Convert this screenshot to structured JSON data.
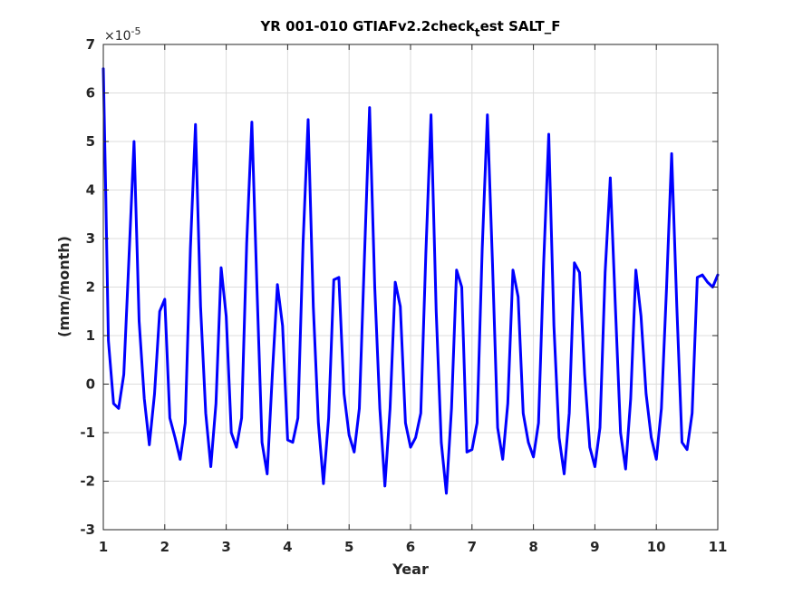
{
  "chart_data": {
    "type": "line",
    "title_main": "YR 001-010 GTIAFv2.2check",
    "title_sub": "t",
    "title_rest": "est SALT_F",
    "xlabel": "Year",
    "ylabel": "(mm/month)",
    "y_multiplier": "×10",
    "y_multiplier_exp": "-5",
    "xlim": [
      1,
      11
    ],
    "ylim": [
      -3,
      7
    ],
    "xticks": [
      "1",
      "2",
      "3",
      "4",
      "5",
      "6",
      "7",
      "8",
      "9",
      "10",
      "11"
    ],
    "yticks": [
      "-3",
      "-2",
      "-1",
      "0",
      "1",
      "2",
      "3",
      "4",
      "5",
      "6",
      "7"
    ],
    "grid": true,
    "line_color": "#0000ff",
    "series": [
      {
        "x": [
          1.0,
          1.042,
          1.083,
          1.167,
          1.25,
          1.333,
          1.417,
          1.5,
          1.583,
          1.667,
          1.75,
          1.833,
          1.917,
          2.0,
          2.083,
          2.167,
          2.25,
          2.333,
          2.417,
          2.5,
          2.583,
          2.667,
          2.75,
          2.833,
          2.917,
          3.0,
          3.083,
          3.167,
          3.25,
          3.333,
          3.417,
          3.5,
          3.583,
          3.667,
          3.75,
          3.833,
          3.917,
          4.0,
          4.083,
          4.167,
          4.25,
          4.333,
          4.417,
          4.5,
          4.583,
          4.667,
          4.75,
          4.833,
          4.917,
          5.0,
          5.083,
          5.167,
          5.25,
          5.333,
          5.417,
          5.5,
          5.583,
          5.667,
          5.75,
          5.833,
          5.917,
          6.0,
          6.083,
          6.167,
          6.25,
          6.333,
          6.417,
          6.5,
          6.583,
          6.667,
          6.75,
          6.833,
          6.917,
          7.0,
          7.083,
          7.167,
          7.25,
          7.333,
          7.417,
          7.5,
          7.583,
          7.667,
          7.75,
          7.833,
          7.917,
          8.0,
          8.083,
          8.167,
          8.25,
          8.333,
          8.417,
          8.5,
          8.583,
          8.667,
          8.75,
          8.833,
          8.917,
          9.0,
          9.083,
          9.167,
          9.25,
          9.333,
          9.417,
          9.5,
          9.583,
          9.667,
          9.75,
          9.833,
          9.917,
          10.0,
          10.083,
          10.167,
          10.25,
          10.333,
          10.417,
          10.5,
          10.583,
          10.667,
          10.75,
          10.833,
          10.917,
          11.0
        ],
        "y": [
          6.5,
          3.8,
          0.9,
          -0.4,
          -0.5,
          0.2,
          2.6,
          5.0,
          1.3,
          -0.3,
          -1.25,
          -0.2,
          1.5,
          1.75,
          -0.7,
          -1.1,
          -1.55,
          -0.8,
          2.8,
          5.35,
          1.6,
          -0.6,
          -1.7,
          -0.4,
          2.4,
          1.4,
          -1.0,
          -1.3,
          -0.7,
          2.9,
          5.4,
          2.0,
          -1.2,
          -1.85,
          0.2,
          2.05,
          1.2,
          -1.15,
          -1.2,
          -0.7,
          2.9,
          5.45,
          1.6,
          -0.8,
          -2.05,
          -0.7,
          2.15,
          2.2,
          -0.2,
          -1.05,
          -1.4,
          -0.5,
          2.6,
          5.7,
          2.0,
          -0.5,
          -2.1,
          -0.5,
          2.1,
          1.6,
          -0.8,
          -1.3,
          -1.1,
          -0.6,
          2.7,
          5.55,
          1.5,
          -1.2,
          -2.25,
          -0.5,
          2.35,
          2.0,
          -1.4,
          -1.35,
          -0.8,
          2.8,
          5.55,
          2.5,
          -0.9,
          -1.55,
          -0.4,
          2.35,
          1.8,
          -0.6,
          -1.2,
          -1.5,
          -0.8,
          2.5,
          5.15,
          1.2,
          -1.1,
          -1.85,
          -0.6,
          2.5,
          2.3,
          0.2,
          -1.3,
          -1.7,
          -0.9,
          2.3,
          4.25,
          1.6,
          -1.0,
          -1.75,
          -0.3,
          2.35,
          1.4,
          -0.2,
          -1.1,
          -1.55,
          -0.5,
          2.0,
          4.75,
          1.6,
          -1.2,
          -1.35,
          -0.6,
          2.2,
          2.25,
          2.1,
          2.0,
          2.25
        ]
      }
    ]
  }
}
